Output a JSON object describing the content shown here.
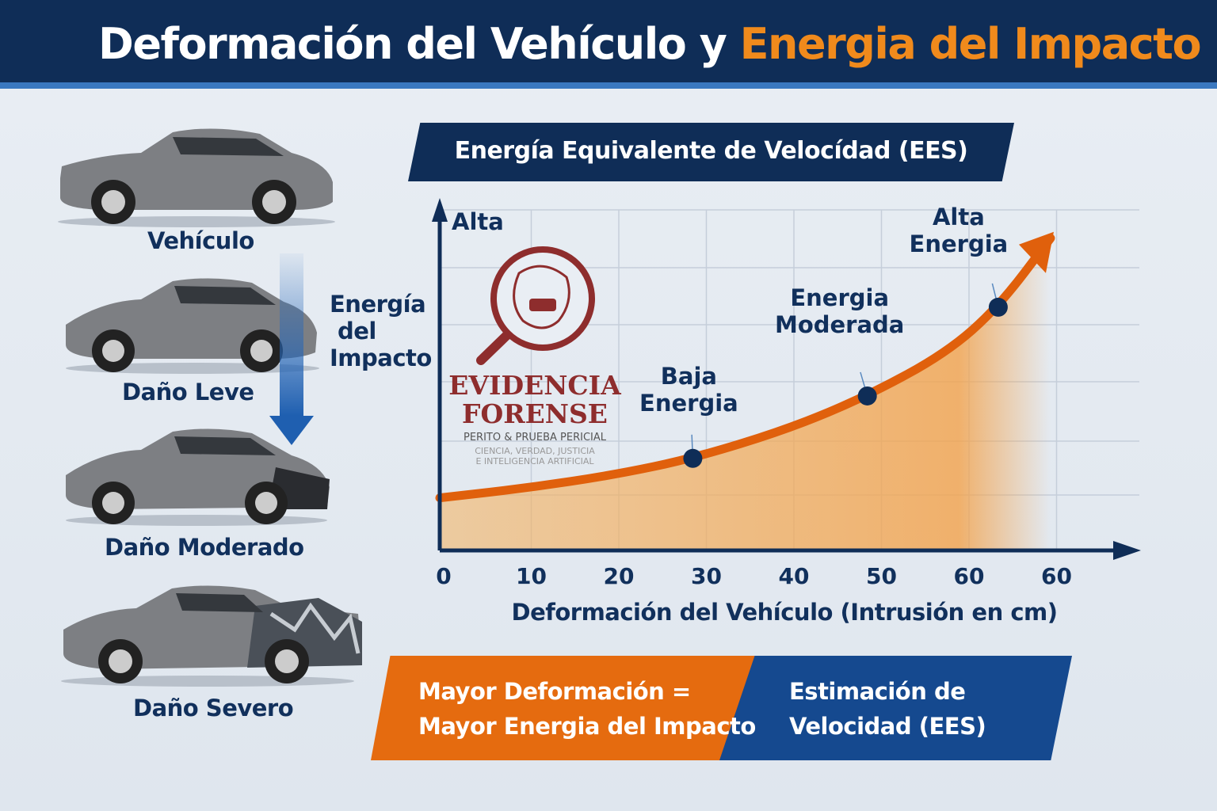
{
  "header": {
    "title_part1": "Deformación del Vehículo y ",
    "title_part2": "Energia del Impacto"
  },
  "cars": [
    {
      "label": "Vehículo",
      "damage": "none"
    },
    {
      "label": "Daño Leve",
      "damage": "light"
    },
    {
      "label": "Daño Moderado",
      "damage": "moderate"
    },
    {
      "label": "Daño Severo",
      "damage": "severe"
    }
  ],
  "impact_arrow_label": [
    "Energía",
    "del",
    "Impacto"
  ],
  "watermark": {
    "title1": "EVIDENCIA",
    "title2": "FORENSE",
    "subtitle": "PERITO & PRUEBA PERICIAL",
    "tagline1": "CIENCIA, VERDAD, JUSTICIA",
    "tagline2": "E INTELIGENCIA ARTIFICIAL"
  },
  "bottom": {
    "left_line1": "Mayor Deformación =",
    "left_line2": "Mayor Energia del Impacto",
    "right_line1": "Estimación de",
    "right_line2": "Velocidad (EES)"
  },
  "colors": {
    "navy": "#0f2d57",
    "orange": "#e56b0f",
    "blue": "#15498f"
  },
  "chart_data": {
    "type": "line",
    "title": "Energía Equivalente de Velocídad (EES)",
    "xlabel": "Deformación del Vehículo (Intrusión en cm)",
    "ylabel": "Alta",
    "x_tick_labels": [
      "0",
      "10",
      "20",
      "30",
      "40",
      "50",
      "60",
      "60"
    ],
    "xlim": [
      0,
      72
    ],
    "ylim": [
      0,
      100
    ],
    "grid": true,
    "series": [
      {
        "name": "Energía",
        "x": [
          0,
          10,
          20,
          29,
          40,
          49,
          58,
          64,
          70
        ],
        "y": [
          16,
          19,
          23,
          28,
          37,
          47,
          60,
          74,
          95
        ]
      }
    ],
    "annotations": [
      {
        "x": 29,
        "y": 28,
        "text": [
          "Baja",
          "Energia"
        ]
      },
      {
        "x": 49,
        "y": 47,
        "text": [
          "Energia",
          "Moderada"
        ]
      },
      {
        "x": 64,
        "y": 74,
        "text": [
          "Alta",
          "Energia"
        ]
      }
    ]
  }
}
